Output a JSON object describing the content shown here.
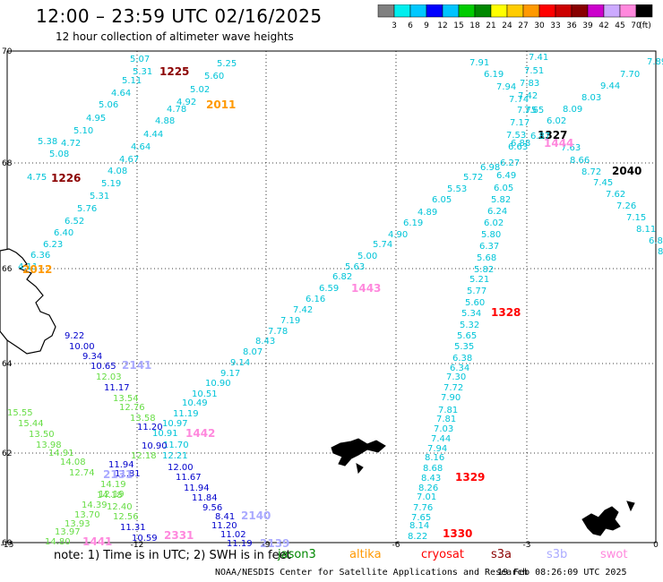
{
  "header": {
    "title": "12:00 – 23:59 UTC 02/16/2025",
    "subtitle": "12 hour collection of altimeter wave heights"
  },
  "scale": {
    "unit": "(ft)",
    "labels": [
      "3",
      "6",
      "9",
      "12",
      "15",
      "18",
      "21",
      "24",
      "27",
      "30",
      "33",
      "36",
      "39",
      "42",
      "45",
      "70"
    ],
    "colors": [
      "#808080",
      "#00eeee",
      "#00c8ff",
      "#0000ff",
      "#00c4ff",
      "#00cc00",
      "#008800",
      "#ffff00",
      "#ffcc00",
      "#ff9900",
      "#ff0000",
      "#cc0000",
      "#880000",
      "#cc00cc",
      "#ccaaff",
      "#ff88dd",
      "#000000"
    ]
  },
  "map": {
    "lon_ticks": [
      "-15",
      "-12",
      "-9",
      "-6",
      "-3",
      "0"
    ],
    "lat_ticks": [
      "70",
      "68",
      "66",
      "64",
      "62",
      "60"
    ],
    "tracks": [
      {
        "id": "1225",
        "color": "#00c4d8",
        "label": "1225",
        "label_color": "#8b0000",
        "points": [
          [
            "5.07",
            145,
            59
          ],
          [
            "5.31",
            148,
            73
          ],
          [
            "5.11",
            136,
            83
          ],
          [
            "4.64",
            124,
            97
          ],
          [
            "5.06",
            110,
            110
          ],
          [
            "4.95",
            96,
            125
          ],
          [
            "5.10",
            82,
            139
          ],
          [
            "4.72",
            68,
            153
          ],
          [
            "5.08",
            55,
            165
          ],
          [
            "5.38",
            42,
            151
          ],
          [
            "4.75",
            30,
            191
          ]
        ],
        "label_pos": [
          178,
          74
        ]
      },
      {
        "id": "1226",
        "color": "#00c4d8",
        "label": "1226",
        "label_color": "#8b0000",
        "points": [
          [
            "5.19",
            113,
            198
          ],
          [
            "5.31",
            100,
            212
          ],
          [
            "5.76",
            86,
            226
          ],
          [
            "6.52",
            72,
            240
          ],
          [
            "6.40",
            60,
            253
          ],
          [
            "6.23",
            48,
            266
          ],
          [
            "6.36",
            34,
            278
          ],
          [
            "4.11",
            20,
            291
          ]
        ],
        "label_pos": [
          57,
          193
        ]
      },
      {
        "id": "2011",
        "color": "#00c4d8",
        "label": "2011",
        "label_color": "#ff9900",
        "points": [
          [
            "5.25",
            242,
            64
          ],
          [
            "5.60",
            228,
            78
          ],
          [
            "5.02",
            212,
            93
          ],
          [
            "4.92",
            197,
            107
          ],
          [
            "4.78",
            186,
            115
          ],
          [
            "4.88",
            173,
            128
          ],
          [
            "4.44",
            160,
            143
          ],
          [
            "4.64",
            146,
            157
          ],
          [
            "4.67",
            133,
            171
          ],
          [
            "4.08",
            120,
            184
          ]
        ],
        "label_pos": [
          230,
          111
        ]
      },
      {
        "id": "2012",
        "color": "#00c4d8",
        "label": "2012",
        "label_color": "#ff9900",
        "points": [],
        "label_pos": [
          25,
          295
        ]
      },
      {
        "id": "1443",
        "color": "#00c4d8",
        "label": "1443",
        "label_color": "#ff88dd",
        "points": [
          [
            "5.72",
            517,
            191
          ],
          [
            "5.53",
            499,
            204
          ],
          [
            "6.05",
            482,
            216
          ],
          [
            "4.89",
            466,
            230
          ],
          [
            "6.19",
            450,
            242
          ],
          [
            "4.90",
            433,
            255
          ],
          [
            "5.74",
            416,
            266
          ],
          [
            "5.00",
            399,
            279
          ],
          [
            "5.63",
            385,
            291
          ],
          [
            "6.82",
            371,
            302
          ],
          [
            "6.59",
            356,
            315
          ],
          [
            "6.16",
            341,
            327
          ],
          [
            "7.42",
            327,
            339
          ],
          [
            "7.19",
            313,
            351
          ],
          [
            "7.78",
            299,
            363
          ],
          [
            "8.43",
            285,
            374
          ],
          [
            "8.07",
            271,
            386
          ],
          [
            "9.14",
            257,
            398
          ],
          [
            "9.17",
            246,
            410
          ],
          [
            "10.90",
            229,
            421
          ],
          [
            "10.51",
            214,
            433
          ],
          [
            "10.49",
            203,
            443
          ],
          [
            "11.19",
            193,
            455
          ],
          [
            "10.97",
            181,
            466
          ],
          [
            "10.91",
            170,
            477
          ],
          [
            "11.70",
            182,
            490
          ],
          [
            "12.21",
            181,
            502
          ]
        ],
        "label_pos": [
          392,
          316
        ]
      },
      {
        "id": "1327",
        "color": "#00c4d8",
        "label": "1327",
        "label_color": "#000000",
        "points": [
          [
            "7.91",
            524,
            63
          ],
          [
            "6.19",
            540,
            76
          ],
          [
            "7.94",
            554,
            90
          ],
          [
            "7.74",
            568,
            104
          ],
          [
            "7.75",
            577,
            116
          ],
          [
            "7.17",
            569,
            130
          ],
          [
            "7.53",
            565,
            144
          ],
          [
            "6.63",
            567,
            157
          ],
          [
            "6.27",
            558,
            175
          ],
          [
            "6.98",
            536,
            180
          ],
          [
            "6.49",
            554,
            189
          ],
          [
            "6.05",
            551,
            203
          ],
          [
            "5.82",
            548,
            216
          ],
          [
            "6.24",
            544,
            229
          ],
          [
            "6.02",
            540,
            242
          ],
          [
            "5.80",
            537,
            255
          ],
          [
            "6.37",
            535,
            268
          ],
          [
            "5.68",
            532,
            281
          ],
          [
            "5.82",
            529,
            294
          ],
          [
            "5.21",
            524,
            305
          ],
          [
            "5.77",
            521,
            318
          ],
          [
            "5.60",
            519,
            331
          ],
          [
            "5.34",
            515,
            343
          ],
          [
            "5.32",
            513,
            356
          ],
          [
            "5.65",
            510,
            368
          ],
          [
            "5.35",
            507,
            380
          ],
          [
            "6.38",
            505,
            393
          ],
          [
            "6.34",
            502,
            404
          ],
          [
            "7.30",
            498,
            414
          ],
          [
            "7.72",
            495,
            426
          ],
          [
            "7.90",
            492,
            437
          ],
          [
            "7.81",
            489,
            451
          ],
          [
            "7.81",
            487,
            461
          ],
          [
            "7.03",
            484,
            472
          ],
          [
            "7.44",
            481,
            483
          ],
          [
            "7.94",
            477,
            494
          ],
          [
            "8.16",
            474,
            504
          ],
          [
            "8.68",
            472,
            516
          ],
          [
            "8.43",
            470,
            527
          ],
          [
            "8.26",
            467,
            538
          ],
          [
            "7.01",
            465,
            548
          ],
          [
            "7.76",
            461,
            560
          ],
          [
            "7.65",
            459,
            571
          ],
          [
            "8.14",
            457,
            580
          ],
          [
            "8.22",
            455,
            592
          ]
        ],
        "label_pos": [
          600,
          145
        ]
      },
      {
        "id": "1328",
        "color": "#00c4d8",
        "label": "1328",
        "label_color": "#ff0000",
        "points": [],
        "label_pos": [
          548,
          343
        ]
      },
      {
        "id": "1329",
        "color": "#00c4d8",
        "label": "1329",
        "label_color": "#ff0000",
        "points": [],
        "label_pos": [
          508,
          527
        ]
      },
      {
        "id": "1330",
        "color": "#00c4d8",
        "label": "1330",
        "label_color": "#ff0000",
        "points": [],
        "label_pos": [
          494,
          590
        ]
      },
      {
        "id": "1444",
        "color": "#00c4d8",
        "label": "1444",
        "label_color": "#ff88dd",
        "points": [
          [
            "7.41",
            590,
            57
          ],
          [
            "7.51",
            585,
            72
          ],
          [
            "7.83",
            580,
            86
          ],
          [
            "7.42",
            578,
            100
          ],
          [
            "7.65",
            585,
            116
          ],
          [
            "6.02",
            610,
            128
          ],
          [
            "6.88",
            570,
            153
          ],
          [
            "6.87",
            592,
            145
          ],
          [
            "7.63",
            626,
            158
          ],
          [
            "8.66",
            636,
            172
          ],
          [
            "8.72",
            649,
            185
          ]
        ],
        "label_pos": [
          607,
          154
        ]
      },
      {
        "id": "2040",
        "color": "#00c4d8",
        "label": "2040",
        "label_color": "#000000",
        "points": [
          [
            "7.89",
            722,
            62
          ],
          [
            "7.70",
            692,
            76
          ],
          [
            "9.44",
            670,
            89
          ],
          [
            "8.03",
            649,
            102
          ],
          [
            "8.09",
            628,
            115
          ],
          [
            "7.45",
            662,
            197
          ],
          [
            "7.62",
            676,
            210
          ],
          [
            "7.26",
            688,
            223
          ],
          [
            "7.15",
            699,
            236
          ],
          [
            "8.11",
            710,
            249
          ],
          [
            "6.8",
            724,
            262
          ],
          [
            "8",
            734,
            274
          ]
        ],
        "label_pos": [
          683,
          185
        ]
      },
      {
        "id": "2141",
        "color": "#0000cc",
        "label": "2141",
        "label_color": "#aaaaff",
        "points": [
          [
            "9.22",
            72,
            368
          ],
          [
            "10.00",
            77,
            380
          ],
          [
            "9.34",
            92,
            391
          ],
          [
            "10.65",
            101,
            402
          ],
          [
            "11.17",
            116,
            426
          ],
          [
            "11.20",
            153,
            470
          ],
          [
            "10.90",
            158,
            491
          ]
        ],
        "label_pos": [
          136,
          402
        ]
      },
      {
        "id": "1442",
        "color": "#0000cc",
        "label": "1442",
        "label_color": "#ff88dd",
        "points": [],
        "label_pos": [
          207,
          478
        ]
      },
      {
        "id": "1441",
        "color": "#66dd44",
        "label": "1441",
        "label_color": "#ff88dd",
        "points": [
          [
            "12.03",
            107,
            414
          ],
          [
            "13.54",
            126,
            438
          ],
          [
            "12.76",
            133,
            448
          ],
          [
            "13.58",
            145,
            460
          ],
          [
            "12.18",
            146,
            502
          ],
          [
            "15.55",
            8,
            454
          ],
          [
            "15.44",
            20,
            466
          ],
          [
            "13.50",
            32,
            478
          ],
          [
            "13.98",
            40,
            490
          ],
          [
            "14.91",
            54,
            499
          ],
          [
            "14.08",
            67,
            509
          ],
          [
            "12.74",
            77,
            521
          ],
          [
            "14.19",
            112,
            534
          ],
          [
            "14.18",
            108,
            546
          ],
          [
            "14.39",
            91,
            557
          ],
          [
            "13.70",
            83,
            568
          ],
          [
            "13.93",
            72,
            578
          ],
          [
            "13.97",
            61,
            587
          ],
          [
            "14.80",
            50,
            598
          ],
          [
            "12.40",
            119,
            559
          ],
          [
            "12.56",
            126,
            570
          ],
          [
            "12.19",
            110,
            545
          ]
        ],
        "label_pos": [
          92,
          599
        ]
      },
      {
        "id": "2131",
        "color": "#0000cc",
        "label": "2131",
        "label_color": "#aaaaff",
        "points": [
          [
            "11.94",
            121,
            512
          ],
          [
            "11.81",
            128,
            522
          ],
          [
            "12.00",
            187,
            515
          ],
          [
            "11.67",
            196,
            526
          ],
          [
            "11.94",
            205,
            538
          ],
          [
            "11.84",
            214,
            549
          ],
          [
            "9.56",
            226,
            560
          ],
          [
            "8.41",
            240,
            570
          ],
          [
            "11.20",
            236,
            580
          ],
          [
            "11.02",
            246,
            590
          ],
          [
            "11.19",
            253,
            600
          ],
          [
            "11.31",
            134,
            582
          ],
          [
            "10.59",
            147,
            594
          ]
        ],
        "label_pos": [
          115,
          524
        ]
      },
      {
        "id": "2331",
        "color": "#0000cc",
        "label": "2331",
        "label_color": "#ff88dd",
        "points": [],
        "label_pos": [
          183,
          592
        ]
      },
      {
        "id": "2140",
        "color": "#0000cc",
        "label": "2140",
        "label_color": "#aaaaff",
        "points": [],
        "label_pos": [
          269,
          570
        ]
      },
      {
        "id": "2139",
        "color": "#0000cc",
        "label": "2139",
        "label_color": "#aaaaff",
        "points": [],
        "label_pos": [
          290,
          601
        ]
      }
    ]
  },
  "footer": {
    "note": "note: 1) Time is in UTC; 2) SWH is in feet",
    "satellites": [
      {
        "name": "jason3",
        "color": "#008800"
      },
      {
        "name": "altika",
        "color": "#ff9900"
      },
      {
        "name": "cryosat",
        "color": "#ff0000"
      },
      {
        "name": "s3a",
        "color": "#8b0000"
      },
      {
        "name": "s3b",
        "color": "#aaaaff"
      },
      {
        "name": "swot",
        "color": "#ff88dd"
      }
    ],
    "credit": "NOAA/NESDIS Center for Satellite Applications and Research",
    "timestamp": "19 Feb 08:26:09 UTC 2025"
  }
}
